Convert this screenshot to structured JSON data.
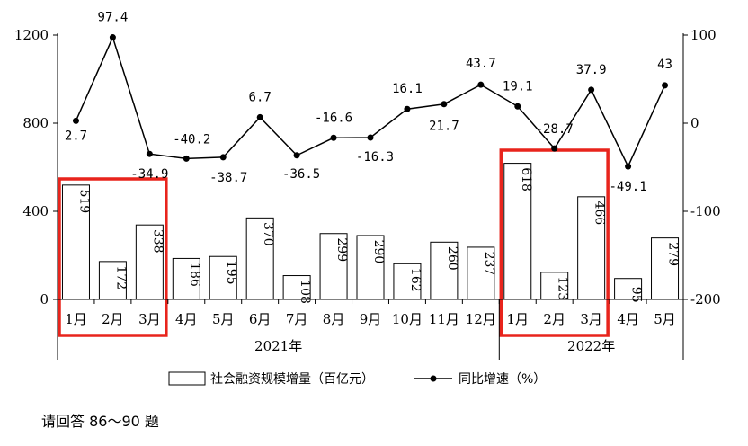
{
  "chart_data": {
    "type": "bar",
    "categories": [
      "1月",
      "2月",
      "3月",
      "4月",
      "5月",
      "6月",
      "7月",
      "8月",
      "9月",
      "10月",
      "11月",
      "12月",
      "1月",
      "2月",
      "3月",
      "4月",
      "5月"
    ],
    "years": [
      {
        "label": "2021年",
        "count": 12
      },
      {
        "label": "2022年",
        "count": 5
      }
    ],
    "series": [
      {
        "name": "社会融资规模增量（百亿元）",
        "type": "bar",
        "axis": "left",
        "values": [
          519,
          172,
          338,
          186,
          195,
          370,
          108,
          299,
          290,
          162,
          260,
          237,
          618,
          123,
          466,
          95,
          279
        ],
        "labels": [
          "519",
          "172",
          "338",
          "186",
          "195",
          "370",
          "108",
          "299",
          "290",
          "162",
          "260",
          "237",
          "618",
          "123",
          "466",
          "95",
          "279"
        ]
      },
      {
        "name": "同比增速（%）",
        "type": "line",
        "axis": "right",
        "values": [
          2.7,
          97.4,
          -34.9,
          -40.2,
          -38.7,
          6.7,
          -36.5,
          -16.6,
          -16.3,
          16.1,
          21.7,
          43.7,
          19.1,
          -28.7,
          37.9,
          -49.1,
          43
        ],
        "labels": [
          "2.7",
          "97.4",
          "-34.9",
          "-40.2",
          "-38.7",
          "6.7",
          "-36.5",
          "-16.6",
          "-16.3",
          "16.1",
          "21.7",
          "43.7",
          "19.1",
          "-28.7",
          "37.9",
          "-49.1",
          "43"
        ]
      }
    ],
    "y_left": {
      "ticks": [
        "0",
        "400",
        "800",
        "1200"
      ],
      "ylim": [
        0,
        1200
      ]
    },
    "y_right": {
      "ticks": [
        "-200",
        "-100",
        "0",
        "100"
      ],
      "ylim": [
        -200,
        100
      ]
    },
    "highlights": [
      {
        "from": 0,
        "to": 2,
        "color": "#e8241c"
      },
      {
        "from": 12,
        "to": 14,
        "color": "#e8241c"
      }
    ],
    "legend_position": "bottom",
    "grid": false
  },
  "footer": {
    "text": "请回答 86～90 题"
  }
}
